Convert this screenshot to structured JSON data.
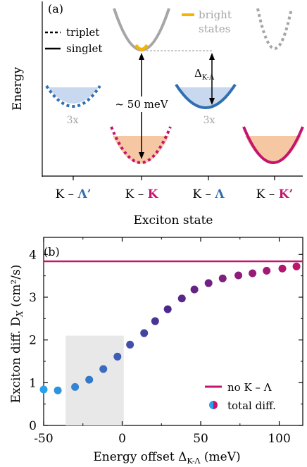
{
  "colors": {
    "blue": "#2f6fb0",
    "magenta": "#c4146e",
    "gray": "#a6a6a6",
    "gold": "#f5b400",
    "lightblue": "#c7d8ef",
    "peach": "#f6c7a3",
    "shade": "#e8e8e8"
  },
  "panel_a": {
    "label": "(a)",
    "legend_triplet": "triplet",
    "legend_singlet": "singlet",
    "bright_label_1": "bright",
    "bright_label_2": "states",
    "mult_left": "3x",
    "mult_right": "3x",
    "energy_gap": "~ 50 meV",
    "offset_main": "Δ",
    "offset_sub": "K-Λ",
    "ylabel": "Energy",
    "xlabel": "Exciton state",
    "states": [
      {
        "left": "K – ",
        "right": "Λ’",
        "right_color": "blue"
      },
      {
        "left": "K – ",
        "right": "K",
        "right_color": "magenta"
      },
      {
        "left": "K – ",
        "right": "Λ",
        "right_color": "blue"
      },
      {
        "left": "K – ",
        "right": "K’",
        "right_color": "magenta"
      }
    ]
  },
  "chart_data": {
    "type": "scatter",
    "panel_label": "(b)",
    "xlabel_main": "Energy offset Δ",
    "xlabel_sub": "K-Λ",
    "xlabel_unit": " (meV)",
    "ylabel": "Exciton diff. D",
    "ylabel_sub": "X",
    "ylabel_unit": " (cm²/s)",
    "xlim": [
      -50,
      115
    ],
    "ylim": [
      0,
      4.4
    ],
    "xticks": [
      -50,
      0,
      50,
      100
    ],
    "xtick_labels": [
      "-50",
      "0",
      "50",
      "100"
    ],
    "yticks": [
      0,
      1,
      2,
      3,
      4
    ],
    "ytick_labels": [
      "0",
      "1",
      "2",
      "3",
      "4"
    ],
    "hline": {
      "y": 3.84,
      "name": "no K – Λ"
    },
    "shaded_region": {
      "x": [
        -36,
        1
      ],
      "y": [
        0,
        2.1
      ]
    },
    "legend_line": "no K – Λ",
    "legend_points": "total diff.",
    "series": [
      {
        "name": "total diff.",
        "x": [
          -50,
          -41,
          -30,
          -21,
          -12,
          -3,
          5,
          14,
          21,
          29,
          38,
          46,
          55,
          64,
          74,
          83,
          92,
          102,
          111
        ],
        "y": [
          0.84,
          0.82,
          0.9,
          1.07,
          1.32,
          1.61,
          1.89,
          2.16,
          2.44,
          2.72,
          2.97,
          3.18,
          3.33,
          3.44,
          3.51,
          3.56,
          3.62,
          3.67,
          3.72
        ]
      }
    ]
  }
}
